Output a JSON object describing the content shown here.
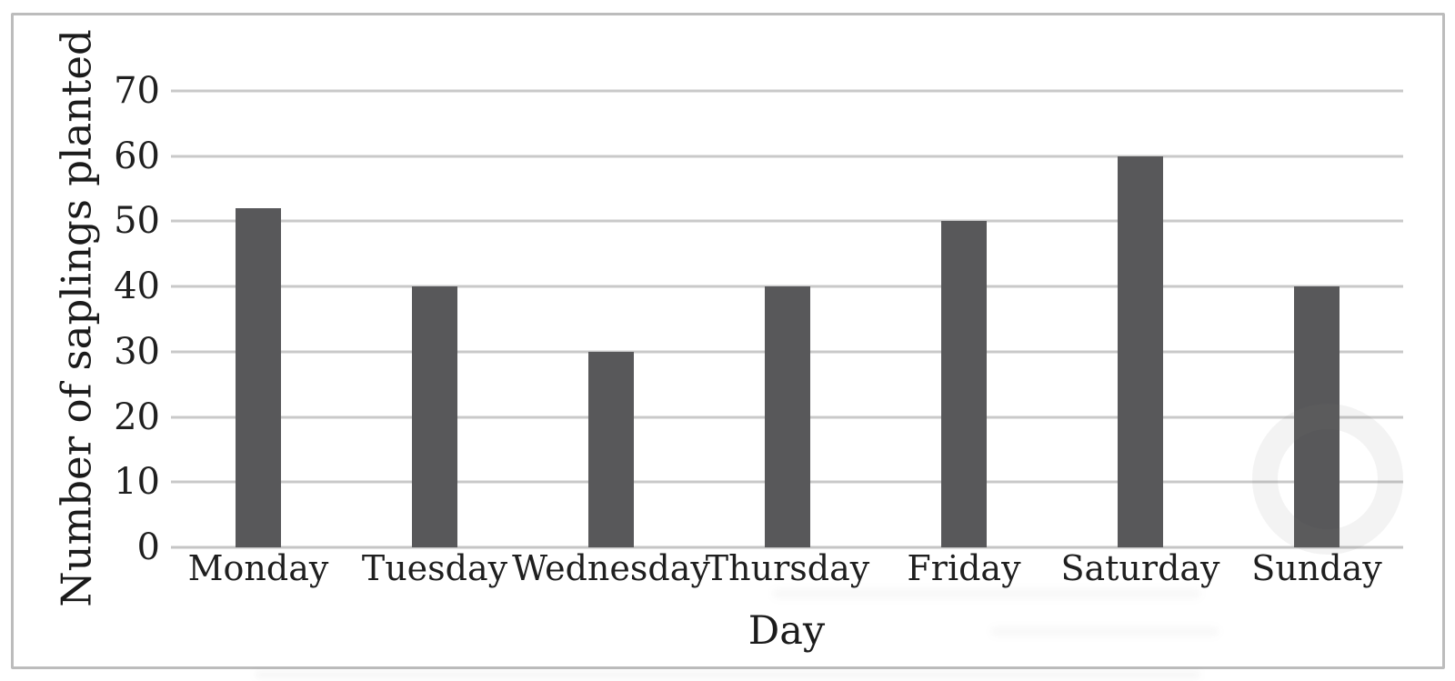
{
  "chart_data": {
    "type": "bar",
    "title": "",
    "categories": [
      "Monday",
      "Tuesday",
      "Wednesday",
      "Thursday",
      "Friday",
      "Saturday",
      "Sunday"
    ],
    "values": [
      52,
      40,
      30,
      40,
      50,
      60,
      40
    ],
    "xlabel": "Day",
    "ylabel": "Number of saplings planted",
    "ylim": [
      0,
      70
    ],
    "yticks": [
      0,
      10,
      20,
      30,
      40,
      50,
      60,
      70
    ],
    "grid": "horizontal",
    "legend": "none",
    "colors": {
      "bar": "#58585a",
      "gridline": "#c9c9c9",
      "axis_line": "#c5c5c5",
      "text": "#1f1f1f",
      "frame_border": "#bcbcbc",
      "background": "#ffffff"
    }
  }
}
